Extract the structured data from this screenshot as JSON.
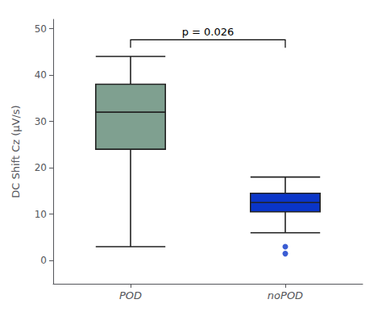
{
  "chart_data": {
    "type": "box",
    "categories": [
      "POD",
      "noPOD"
    ],
    "values": [
      [
        3,
        24,
        32,
        38,
        44
      ],
      [
        6,
        10.5,
        12.5,
        14.5,
        18
      ]
    ],
    "outliers": [
      [],
      [
        1.5,
        3.0
      ]
    ],
    "colors": [
      "#7fa090",
      "#0a35c8"
    ],
    "ylabel": "DC Shift Cz (μV/s)",
    "ylim": [
      -5,
      52
    ],
    "yticks": [
      0,
      10,
      20,
      30,
      40,
      50
    ],
    "grid": false,
    "annotation": "p = 0.026"
  }
}
